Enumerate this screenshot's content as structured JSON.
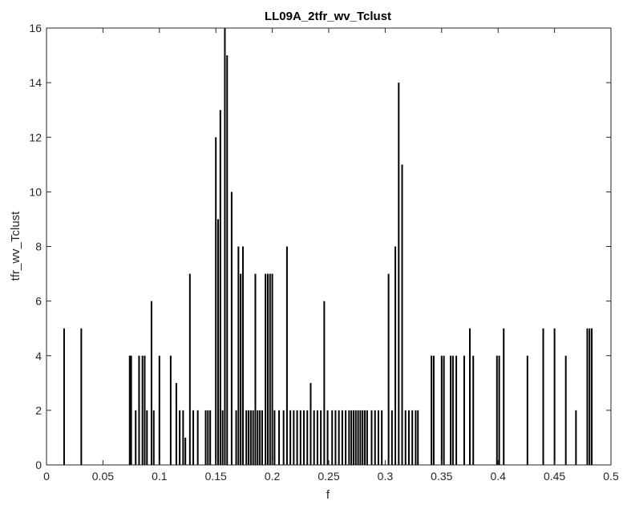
{
  "chart_data": {
    "type": "bar",
    "title": "LL09A_2tfr_wv_Tclust",
    "xlabel": "f",
    "ylabel": "tfr_wv_Tclust",
    "xlim": [
      0,
      0.5
    ],
    "ylim": [
      0,
      16
    ],
    "xticks": [
      0,
      0.05,
      0.1,
      0.15,
      0.2,
      0.25,
      0.3,
      0.35,
      0.4,
      0.45,
      0.5
    ],
    "xtick_labels": [
      "0",
      "0.05",
      "0.1",
      "0.15",
      "0.2",
      "0.25",
      "0.3",
      "0.35",
      "0.4",
      "0.45",
      "0.5"
    ],
    "yticks": [
      0,
      2,
      4,
      6,
      8,
      10,
      12,
      14,
      16
    ],
    "ytick_labels": [
      "0",
      "2",
      "4",
      "6",
      "8",
      "10",
      "12",
      "14",
      "16"
    ],
    "grid": false,
    "bar_color": "#000000",
    "x": [
      0.0156,
      0.0308,
      0.0737,
      0.075,
      0.079,
      0.082,
      0.085,
      0.087,
      0.089,
      0.093,
      0.095,
      0.1,
      0.11,
      0.115,
      0.118,
      0.121,
      0.123,
      0.127,
      0.13,
      0.134,
      0.141,
      0.143,
      0.145,
      0.15,
      0.152,
      0.154,
      0.156,
      0.158,
      0.16,
      0.164,
      0.168,
      0.17,
      0.172,
      0.174,
      0.177,
      0.179,
      0.181,
      0.183,
      0.185,
      0.187,
      0.189,
      0.191,
      0.194,
      0.196,
      0.198,
      0.2,
      0.202,
      0.206,
      0.21,
      0.213,
      0.216,
      0.219,
      0.222,
      0.225,
      0.228,
      0.231,
      0.234,
      0.237,
      0.24,
      0.243,
      0.246,
      0.249,
      0.253,
      0.256,
      0.259,
      0.262,
      0.265,
      0.268,
      0.27,
      0.272,
      0.274,
      0.276,
      0.278,
      0.28,
      0.282,
      0.284,
      0.288,
      0.291,
      0.294,
      0.297,
      0.303,
      0.306,
      0.309,
      0.312,
      0.315,
      0.318,
      0.321,
      0.324,
      0.327,
      0.329,
      0.341,
      0.343,
      0.35,
      0.352,
      0.358,
      0.36,
      0.363,
      0.37,
      0.375,
      0.378,
      0.399,
      0.401,
      0.405,
      0.426,
      0.44,
      0.45,
      0.46,
      0.469,
      0.479,
      0.481,
      0.483
    ],
    "values": [
      5,
      5,
      4,
      4,
      2,
      4,
      4,
      4,
      2,
      6,
      2,
      4,
      4,
      3,
      2,
      2,
      1,
      7,
      2,
      2,
      2,
      2,
      2,
      12,
      9,
      13,
      2,
      16,
      15,
      10,
      2,
      8,
      7,
      8,
      2,
      2,
      2,
      2,
      7,
      2,
      2,
      2,
      7,
      7,
      7,
      7,
      2,
      2,
      2,
      8,
      2,
      2,
      2,
      2,
      2,
      2,
      3,
      2,
      2,
      2,
      6,
      2,
      2,
      2,
      2,
      2,
      2,
      2,
      2,
      2,
      2,
      2,
      2,
      2,
      2,
      2,
      2,
      2,
      2,
      2,
      7,
      2,
      8,
      14,
      11,
      2,
      2,
      2,
      2,
      2,
      4,
      4,
      4,
      4,
      4,
      4,
      4,
      4,
      5,
      4,
      4,
      4,
      5,
      4,
      5,
      5,
      4,
      2,
      5,
      5,
      5
    ]
  }
}
